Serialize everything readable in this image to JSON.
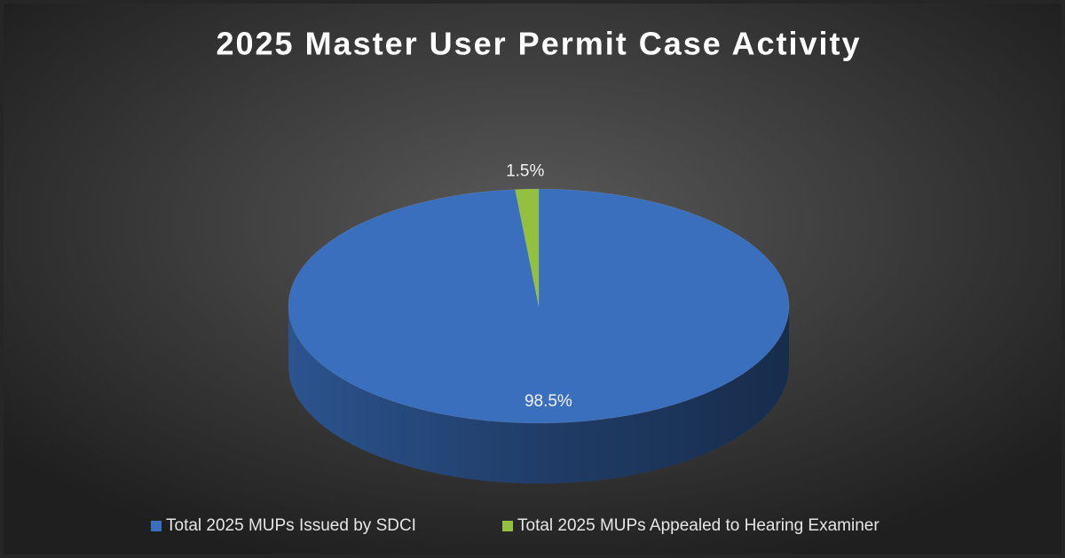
{
  "chart_data": {
    "type": "pie",
    "title": "2025 Master User Permit Case Activity",
    "categories": [
      "Total 2025 MUPs Issued by SDCI",
      "Total 2025 MUPs Appealed to Hearing Examiner"
    ],
    "values": [
      98.5,
      1.5
    ],
    "value_labels": [
      "98.5%",
      "1.5%"
    ],
    "colors": [
      "#3a6fbd",
      "#92c13f"
    ],
    "legend": "bottom"
  }
}
